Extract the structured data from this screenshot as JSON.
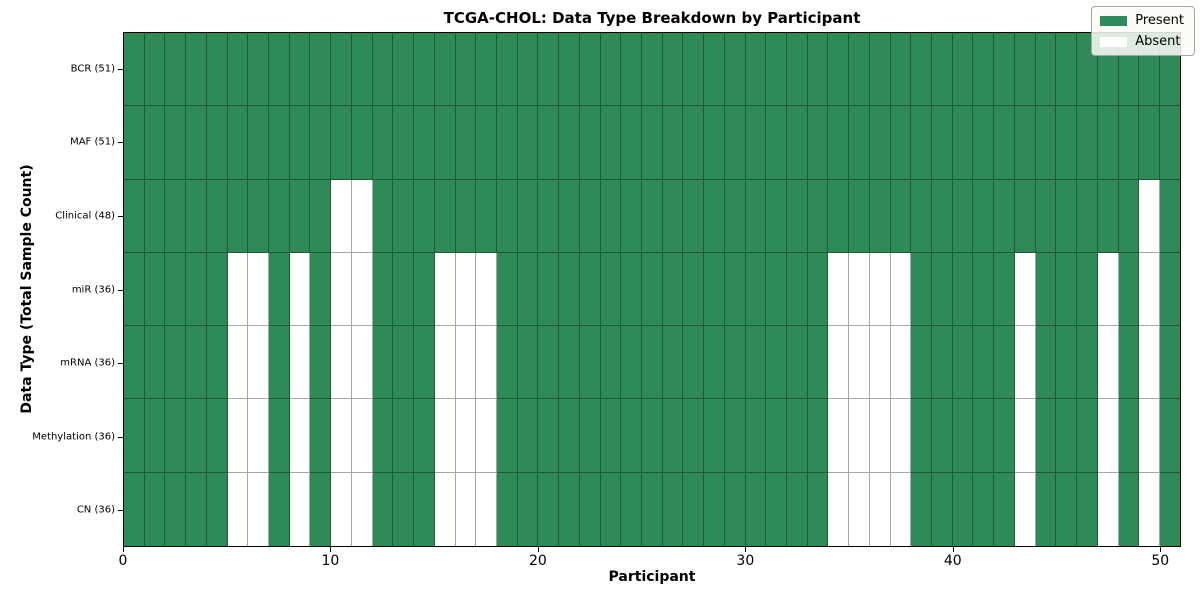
{
  "figure": {
    "title": "TCGA-CHOL: Data Type Breakdown by Participant"
  },
  "chart_data": {
    "type": "heatmap",
    "title": "TCGA-CHOL: Data Type Breakdown by Participant",
    "xlabel": "Participant",
    "ylabel": "Data Type (Total Sample Count)",
    "x_range": [
      0,
      51
    ],
    "n_participants": 51,
    "x_ticks": [
      0,
      10,
      20,
      30,
      40,
      50
    ],
    "grid": true,
    "legend_position": "upper right",
    "legend": [
      {
        "label": "Present",
        "color": "#2e8b57"
      },
      {
        "label": "Absent",
        "color": "#ffffff"
      }
    ],
    "colors": {
      "present": "#2e8b57",
      "absent": "#ffffff",
      "grid": "rgba(0,0,0,0.35)",
      "axes_border": "#000000",
      "legend_border": "#a6a6a6"
    },
    "rows": [
      {
        "label": "BCR (51)",
        "total_present": 51,
        "absent_participants": []
      },
      {
        "label": "MAF (51)",
        "total_present": 51,
        "absent_participants": []
      },
      {
        "label": "Clinical (48)",
        "total_present": 48,
        "absent_participants": [
          10,
          11,
          49
        ]
      },
      {
        "label": "miR (36)",
        "total_present": 36,
        "absent_participants": [
          5,
          6,
          8,
          10,
          11,
          15,
          16,
          17,
          34,
          35,
          36,
          37,
          43,
          47,
          49
        ]
      },
      {
        "label": "mRNA (36)",
        "total_present": 36,
        "absent_participants": [
          5,
          6,
          8,
          10,
          11,
          15,
          16,
          17,
          34,
          35,
          36,
          37,
          43,
          47,
          49
        ]
      },
      {
        "label": "Methylation (36)",
        "total_present": 36,
        "absent_participants": [
          5,
          6,
          8,
          10,
          11,
          15,
          16,
          17,
          34,
          35,
          36,
          37,
          43,
          47,
          49
        ]
      },
      {
        "label": "CN (36)",
        "total_present": 36,
        "absent_participants": [
          5,
          6,
          8,
          10,
          11,
          15,
          16,
          17,
          34,
          35,
          36,
          37,
          43,
          47,
          49
        ]
      }
    ]
  }
}
